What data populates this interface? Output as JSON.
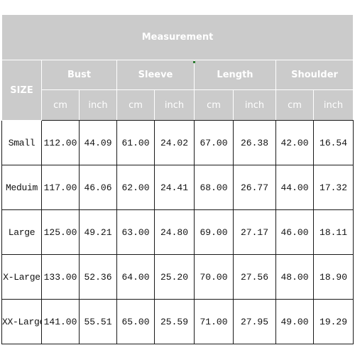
{
  "title": "Measurement",
  "size_header": "SIZE",
  "groups": [
    "Bust",
    "Sleeve",
    "Length",
    "Shoulder"
  ],
  "units": [
    "cm",
    "inch",
    "cm",
    "inch",
    "cm",
    "inch",
    "cm",
    "inch"
  ],
  "rows": [
    {
      "size": "Small",
      "values": [
        "112.00",
        "44.09",
        "61.00",
        "24.02",
        "67.00",
        "26.38",
        "42.00",
        "16.54"
      ]
    },
    {
      "size": "Meduim",
      "values": [
        "117.00",
        "46.06",
        "62.00",
        "24.41",
        "68.00",
        "26.77",
        "44.00",
        "17.32"
      ]
    },
    {
      "size": "Large",
      "values": [
        "125.00",
        "49.21",
        "63.00",
        "24.80",
        "69.00",
        "27.17",
        "46.00",
        "18.11"
      ]
    },
    {
      "size": "X-Large",
      "values": [
        "133.00",
        "52.36",
        "64.00",
        "25.20",
        "70.00",
        "27.56",
        "48.00",
        "18.90"
      ]
    },
    {
      "size": "XX-Large",
      "values": [
        "141.00",
        "55.51",
        "65.00",
        "25.59",
        "71.00",
        "27.95",
        "49.00",
        "19.29"
      ]
    }
  ],
  "colors": {
    "header_bg": "#cbcbcb",
    "header_text": "#ffffff",
    "border": "#1a1a1a",
    "accent": "#2e7d32"
  }
}
